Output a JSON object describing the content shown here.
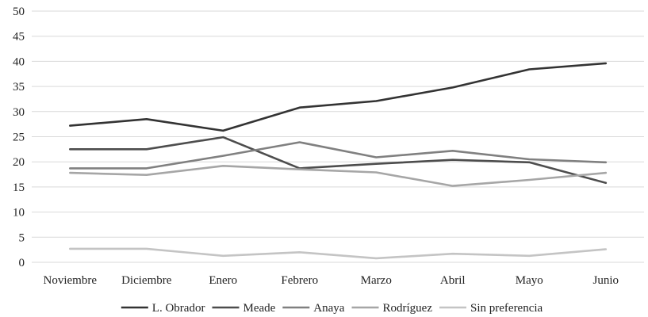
{
  "chart_data": {
    "type": "line",
    "title": "",
    "xlabel": "",
    "ylabel": "",
    "categories": [
      "Noviembre",
      "Diciembre",
      "Enero",
      "Febrero",
      "Marzo",
      "Abril",
      "Mayo",
      "Junio"
    ],
    "ylim": [
      0,
      50
    ],
    "yticks": [
      0,
      5,
      10,
      15,
      20,
      25,
      30,
      35,
      40,
      45,
      50
    ],
    "grid": true,
    "legend_position": "bottom",
    "series": [
      {
        "name": "L. Obrador",
        "color": "#333333",
        "values": [
          27.2,
          28.5,
          26.2,
          30.8,
          32.1,
          34.8,
          38.4,
          39.6
        ]
      },
      {
        "name": "Meade",
        "color": "#4d4d4d",
        "values": [
          22.5,
          22.5,
          24.9,
          18.7,
          19.6,
          20.4,
          19.9,
          15.8
        ]
      },
      {
        "name": "Anaya",
        "color": "#808080",
        "values": [
          18.7,
          18.7,
          21.2,
          23.9,
          20.9,
          22.2,
          20.5,
          19.9
        ]
      },
      {
        "name": "Rodríguez",
        "color": "#a6a6a6",
        "values": [
          17.8,
          17.4,
          19.2,
          18.5,
          17.9,
          15.2,
          16.4,
          17.8
        ]
      },
      {
        "name": "Sin preferencia",
        "color": "#c4c4c4",
        "values": [
          2.7,
          2.7,
          1.3,
          2.0,
          0.8,
          1.7,
          1.3,
          2.6
        ]
      }
    ]
  }
}
